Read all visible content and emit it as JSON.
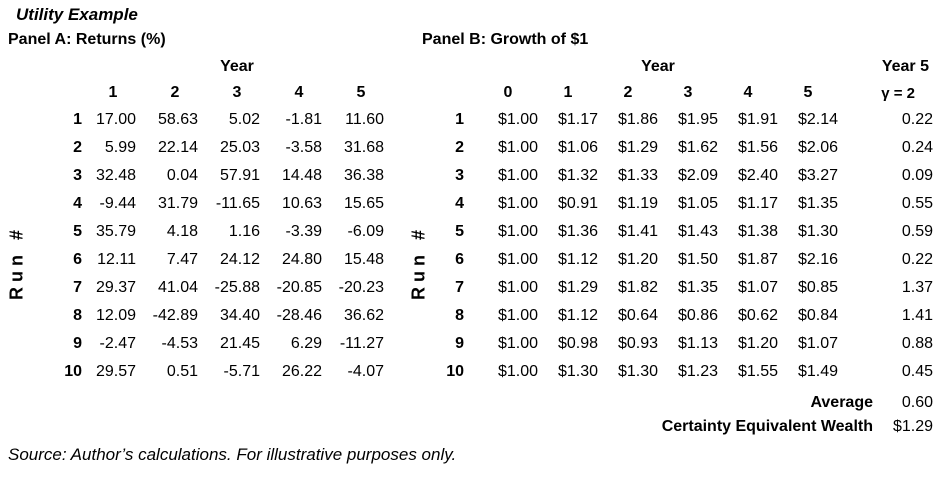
{
  "title": "Utility Example",
  "panelA": {
    "title": "Panel A: Returns (%)",
    "year_label": "Year",
    "axis_label": "Run #",
    "col_headers": [
      "1",
      "2",
      "3",
      "4",
      "5"
    ],
    "rows": [
      {
        "run": "1",
        "values": [
          "17.00",
          "58.63",
          "5.02",
          "-1.81",
          "11.60"
        ]
      },
      {
        "run": "2",
        "values": [
          "5.99",
          "22.14",
          "25.03",
          "-3.58",
          "31.68"
        ]
      },
      {
        "run": "3",
        "values": [
          "32.48",
          "0.04",
          "57.91",
          "14.48",
          "36.38"
        ]
      },
      {
        "run": "4",
        "values": [
          "-9.44",
          "31.79",
          "-11.65",
          "10.63",
          "15.65"
        ]
      },
      {
        "run": "5",
        "values": [
          "35.79",
          "4.18",
          "1.16",
          "-3.39",
          "-6.09"
        ]
      },
      {
        "run": "6",
        "values": [
          "12.11",
          "7.47",
          "24.12",
          "24.80",
          "15.48"
        ]
      },
      {
        "run": "7",
        "values": [
          "29.37",
          "41.04",
          "-25.88",
          "-20.85",
          "-20.23"
        ]
      },
      {
        "run": "8",
        "values": [
          "12.09",
          "-42.89",
          "34.40",
          "-28.46",
          "36.62"
        ]
      },
      {
        "run": "9",
        "values": [
          "-2.47",
          "-4.53",
          "21.45",
          "6.29",
          "-11.27"
        ]
      },
      {
        "run": "10",
        "values": [
          "29.57",
          "0.51",
          "-5.71",
          "26.22",
          "-4.07"
        ]
      }
    ]
  },
  "panelB": {
    "title": "Panel B: Growth of $1",
    "year_label": "Year",
    "year5_label": "Year 5",
    "gamma_label": "γ = 2",
    "axis_label": "Run #",
    "col_headers": [
      "0",
      "1",
      "2",
      "3",
      "4",
      "5"
    ],
    "rows": [
      {
        "run": "1",
        "values": [
          "$1.00",
          "$1.17",
          "$1.86",
          "$1.95",
          "$1.91",
          "$2.14"
        ],
        "utility": "0.22"
      },
      {
        "run": "2",
        "values": [
          "$1.00",
          "$1.06",
          "$1.29",
          "$1.62",
          "$1.56",
          "$2.06"
        ],
        "utility": "0.24"
      },
      {
        "run": "3",
        "values": [
          "$1.00",
          "$1.32",
          "$1.33",
          "$2.09",
          "$2.40",
          "$3.27"
        ],
        "utility": "0.09"
      },
      {
        "run": "4",
        "values": [
          "$1.00",
          "$0.91",
          "$1.19",
          "$1.05",
          "$1.17",
          "$1.35"
        ],
        "utility": "0.55"
      },
      {
        "run": "5",
        "values": [
          "$1.00",
          "$1.36",
          "$1.41",
          "$1.43",
          "$1.38",
          "$1.30"
        ],
        "utility": "0.59"
      },
      {
        "run": "6",
        "values": [
          "$1.00",
          "$1.12",
          "$1.20",
          "$1.50",
          "$1.87",
          "$2.16"
        ],
        "utility": "0.22"
      },
      {
        "run": "7",
        "values": [
          "$1.00",
          "$1.29",
          "$1.82",
          "$1.35",
          "$1.07",
          "$0.85"
        ],
        "utility": "1.37"
      },
      {
        "run": "8",
        "values": [
          "$1.00",
          "$1.12",
          "$0.64",
          "$0.86",
          "$0.62",
          "$0.84"
        ],
        "utility": "1.41"
      },
      {
        "run": "9",
        "values": [
          "$1.00",
          "$0.98",
          "$0.93",
          "$1.13",
          "$1.20",
          "$1.07"
        ],
        "utility": "0.88"
      },
      {
        "run": "10",
        "values": [
          "$1.00",
          "$1.30",
          "$1.30",
          "$1.23",
          "$1.55",
          "$1.49"
        ],
        "utility": "0.45"
      }
    ],
    "summary": [
      {
        "label": "Average",
        "value": "0.60"
      },
      {
        "label": "Certainty Equivalent Wealth",
        "value": "$1.29"
      }
    ]
  },
  "footer": {
    "source": "Source: Author’s calculations. For illustrative purposes only."
  }
}
